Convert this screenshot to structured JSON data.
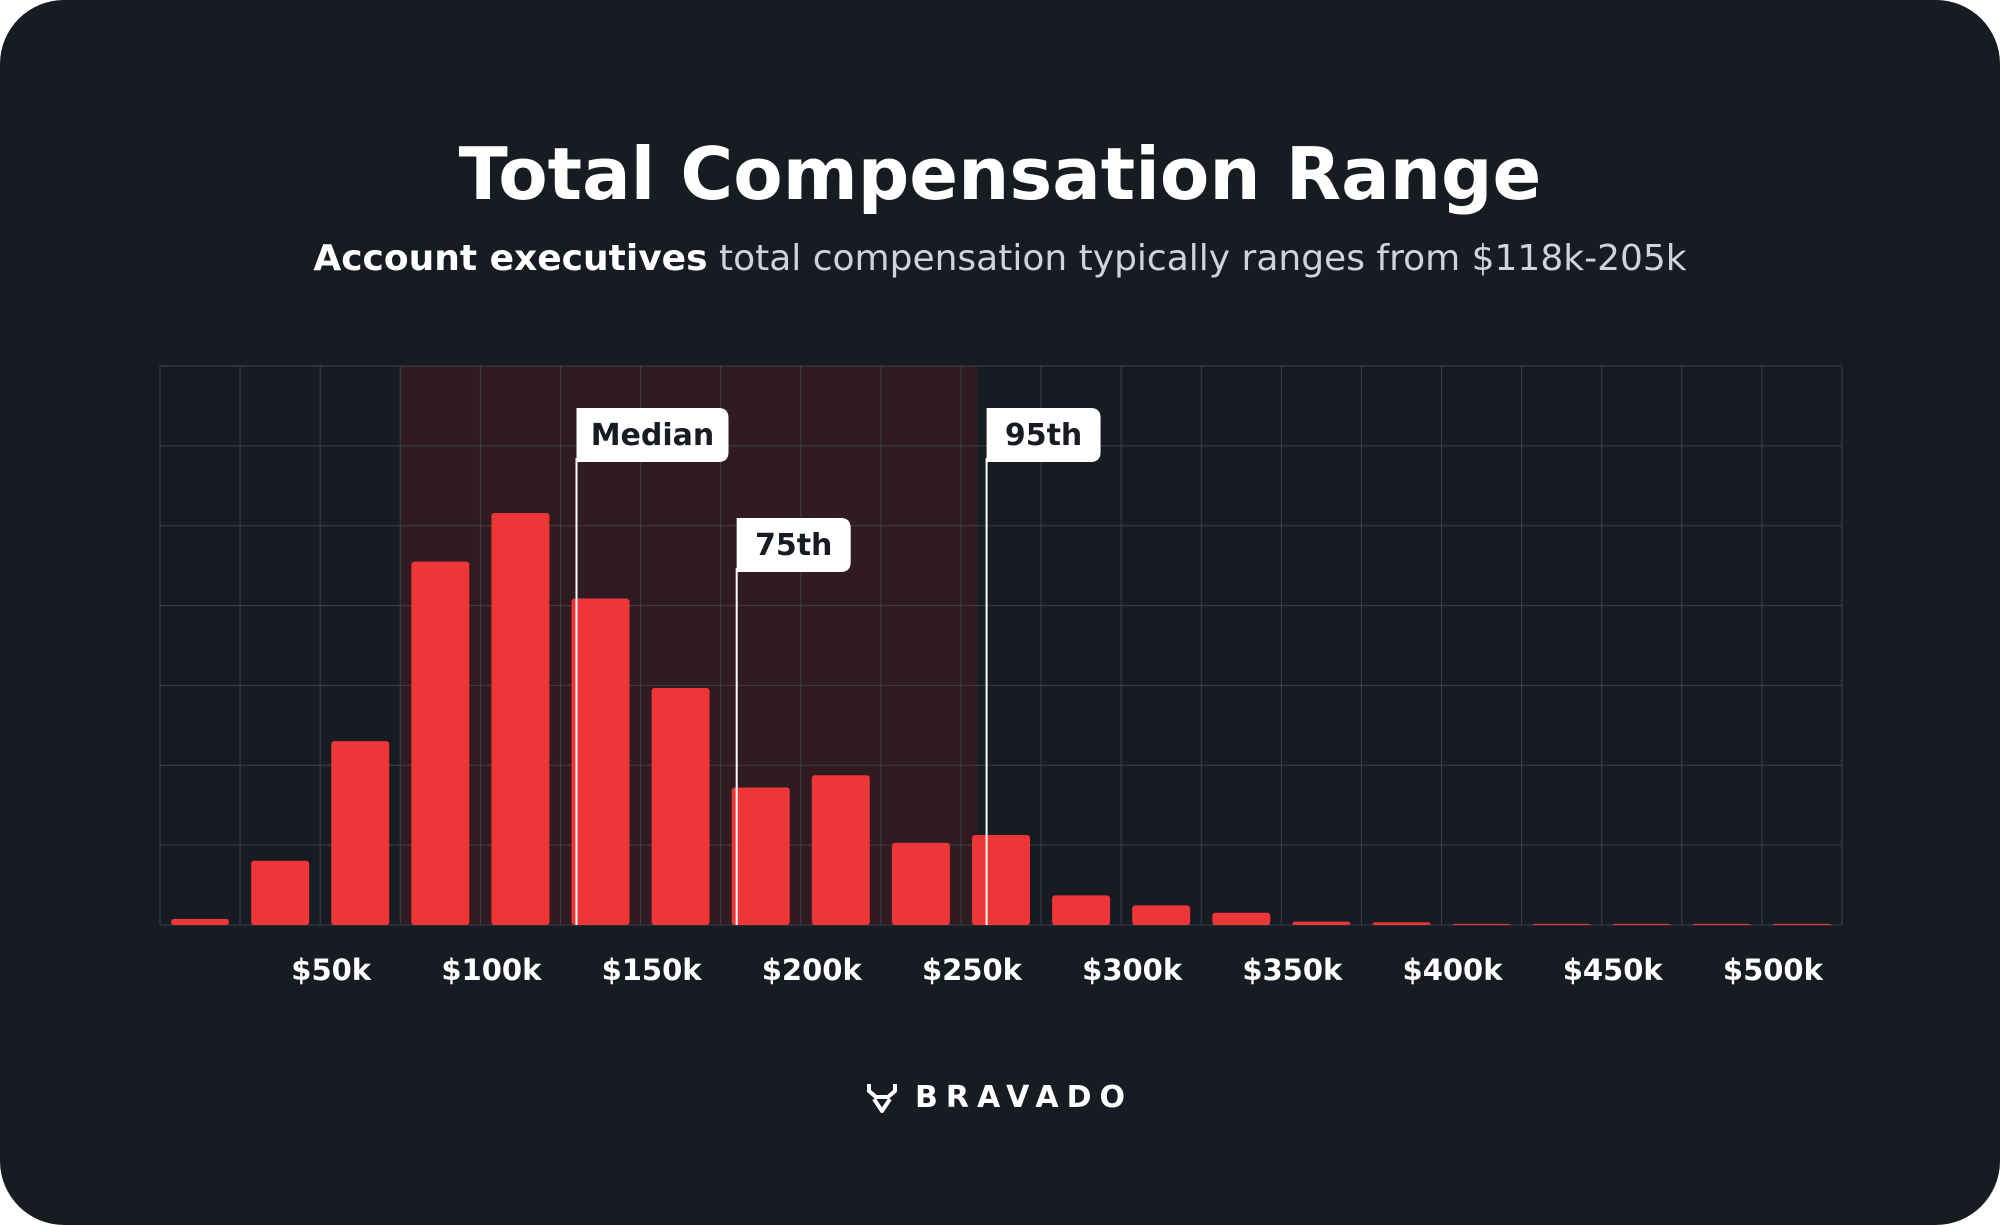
{
  "header": {
    "title": "Total Compensation Range",
    "subtitle_strong": "Account executives",
    "subtitle_rest": " total compensation typically ranges from $118k-205k"
  },
  "brand": {
    "name": "BRAVADO",
    "icon": "bull-icon"
  },
  "colors": {
    "background": "#171b22",
    "bar": "#ee3537",
    "grid": "#3d414a",
    "highlight_band": "#3a1c22",
    "marker_label_bg": "#ffffff",
    "marker_label_text": "#171b22",
    "text": "#ffffff"
  },
  "chart_data": {
    "type": "bar",
    "title": "Total Compensation Range",
    "xlabel": "",
    "ylabel": "",
    "grid": true,
    "x_tick_labels": [
      "$50k",
      "$100k",
      "$150k",
      "$200k",
      "$250k",
      "$300k",
      "$350k",
      "$400k",
      "$450k",
      "$500k"
    ],
    "bin_width": 25000,
    "bin_starts": [
      0,
      25000,
      50000,
      75000,
      100000,
      125000,
      150000,
      175000,
      200000,
      225000,
      250000,
      275000,
      300000,
      325000,
      350000,
      375000,
      400000,
      425000,
      450000,
      475000,
      500000
    ],
    "values": [
      1.1,
      11.5,
      32.9,
      65.0,
      73.7,
      58.4,
      42.4,
      24.6,
      26.8,
      14.7,
      16.1,
      5.3,
      3.5,
      2.2,
      0.6,
      0.5,
      0.2,
      0.2,
      0.2,
      0.2,
      0.2
    ],
    "ylim": [
      0,
      100
    ],
    "highlight_range": [
      75000,
      255000
    ],
    "markers": [
      {
        "label": "Median",
        "value": 130000
      },
      {
        "label": "75th",
        "value": 180000
      },
      {
        "label": "95th",
        "value": 258000
      }
    ]
  }
}
